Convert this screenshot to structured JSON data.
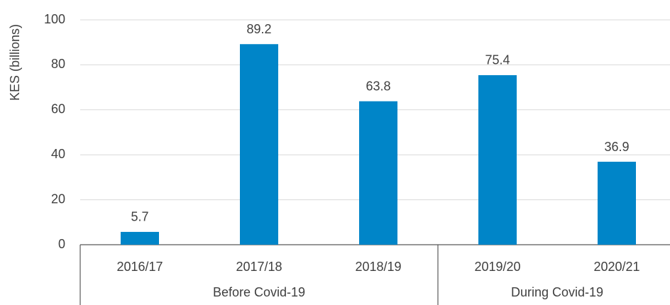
{
  "chart_data": {
    "type": "bar",
    "ylabel": "KES (billions)",
    "groups": [
      {
        "name": "Before Covid-19",
        "categories": [
          "2016/17",
          "2017/18",
          "2018/19"
        ]
      },
      {
        "name": "During Covid-19",
        "categories": [
          "2019/20",
          "2020/21"
        ]
      }
    ],
    "values": [
      5.7,
      89.2,
      63.8,
      75.4,
      36.9
    ],
    "color": "#0085c8",
    "ylim": [
      0,
      100
    ],
    "yticks": [
      0,
      20,
      40,
      60,
      80,
      100
    ],
    "grid": true
  }
}
